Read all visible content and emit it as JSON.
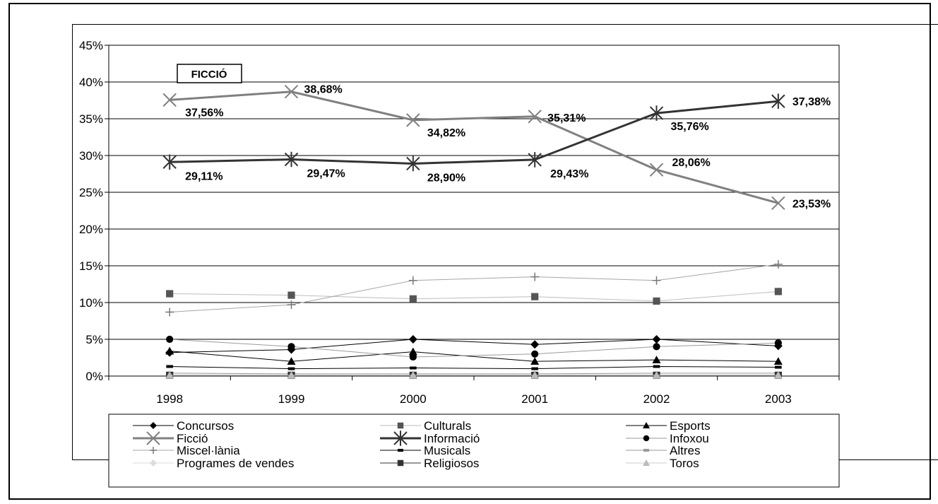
{
  "chart_data": {
    "type": "line",
    "title": "",
    "xlabel": "",
    "ylabel": "",
    "annotation": "FICCIÓ",
    "categories": [
      "1998",
      "1999",
      "2000",
      "2001",
      "2002",
      "2003"
    ],
    "ylim": [
      0,
      45
    ],
    "yticks": [
      "0%",
      "5%",
      "10%",
      "15%",
      "20%",
      "25%",
      "30%",
      "35%",
      "40%",
      "45%"
    ],
    "grid": true,
    "legend_position": "bottom",
    "series": [
      {
        "name": "Concursos",
        "values": [
          3.2,
          3.6,
          5.0,
          4.3,
          5.0,
          4.1
        ],
        "color": "#000000",
        "marker": "diamond",
        "width": 1
      },
      {
        "name": "Culturals",
        "values": [
          11.2,
          11.0,
          10.5,
          10.8,
          10.2,
          11.5
        ],
        "color": "#bdbdbd",
        "marker": "square",
        "markerColor": "#555555",
        "width": 1
      },
      {
        "name": "Esports",
        "values": [
          3.4,
          2.0,
          3.3,
          2.0,
          2.2,
          2.0
        ],
        "color": "#000000",
        "marker": "triangle",
        "width": 1
      },
      {
        "name": "Ficció",
        "values": [
          37.56,
          38.68,
          34.82,
          35.31,
          28.06,
          23.53
        ],
        "labels": [
          "37,56%",
          "38,68%",
          "34,82%",
          "35,31%",
          "28,06%",
          "23,53%"
        ],
        "color": "#808080",
        "marker": "x",
        "width": 3
      },
      {
        "name": "Informació",
        "values": [
          29.11,
          29.47,
          28.9,
          29.43,
          35.76,
          37.38
        ],
        "labels": [
          "29,11%",
          "29,47%",
          "28,90%",
          "29,43%",
          "35,76%",
          "37,38%"
        ],
        "color": "#333333",
        "marker": "star",
        "width": 3
      },
      {
        "name": "Infoxou",
        "values": [
          5.0,
          4.0,
          2.6,
          3.0,
          4.0,
          4.5
        ],
        "color": "#9a9a9a",
        "marker": "circle",
        "markerColor": "#000000",
        "width": 1
      },
      {
        "name": "Miscel·lània",
        "values": [
          8.7,
          9.7,
          13.0,
          13.5,
          13.0,
          15.2
        ],
        "color": "#a6a6a6",
        "marker": "plus",
        "markerColor": "#777777",
        "width": 1
      },
      {
        "name": "Musicals",
        "values": [
          1.3,
          1.0,
          1.1,
          1.0,
          1.3,
          1.2
        ],
        "color": "#000000",
        "marker": "dash",
        "width": 1
      },
      {
        "name": "Altres",
        "values": [
          0.4,
          0.3,
          0.3,
          0.3,
          0.4,
          0.4
        ],
        "color": "#9a9a9a",
        "marker": "dash",
        "width": 1
      },
      {
        "name": "Programes de vendes",
        "values": [
          0.2,
          0.2,
          0.2,
          0.2,
          0.2,
          0.2
        ],
        "color": "#dddddd",
        "marker": "diamond",
        "markerColor": "#dddddd",
        "width": 1
      },
      {
        "name": "Religiosos",
        "values": [
          0.1,
          0.1,
          0.1,
          0.1,
          0.1,
          0.1
        ],
        "color": "#333333",
        "marker": "square",
        "width": 1
      },
      {
        "name": "Toros",
        "values": [
          0.1,
          0.1,
          0.1,
          0.1,
          0.1,
          0.1
        ],
        "color": "#cccccc",
        "marker": "triangle",
        "markerColor": "#bbbbbb",
        "width": 1
      }
    ]
  }
}
